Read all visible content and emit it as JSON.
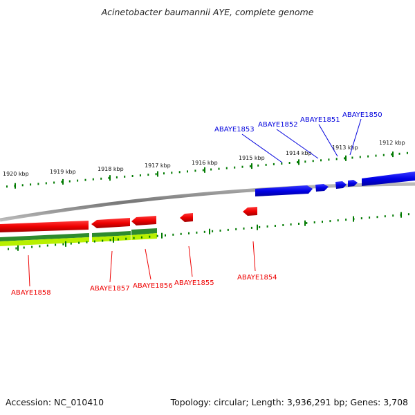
{
  "title": "Acinetobacter baumannii AYE, complete genome",
  "footer": {
    "accession": "Accession: NC_010410",
    "summary": "Topology: circular; Length: 3,936,291 bp; Genes: 3,708"
  },
  "colors": {
    "forward_gene": "#0000dd",
    "reverse_gene": "#ee0000",
    "backbone": "#888888",
    "tick": "#007a00",
    "track_dark_green": "#2e8b2e",
    "track_light_green": "#b8f000"
  },
  "ticks": [
    "1920 kbp",
    "1919 kbp",
    "1918 kbp",
    "1917 kbp",
    "1916 kbp",
    "1915 kbp",
    "1914 kbp",
    "1913 kbp",
    "1912 kbp"
  ],
  "forward_genes": [
    "ABAYE1853",
    "ABAYE1852",
    "ABAYE1851",
    "ABAYE1850"
  ],
  "reverse_genes": [
    "ABAYE1858",
    "ABAYE1857",
    "ABAYE1856",
    "ABAYE1855",
    "ABAYE1854"
  ]
}
